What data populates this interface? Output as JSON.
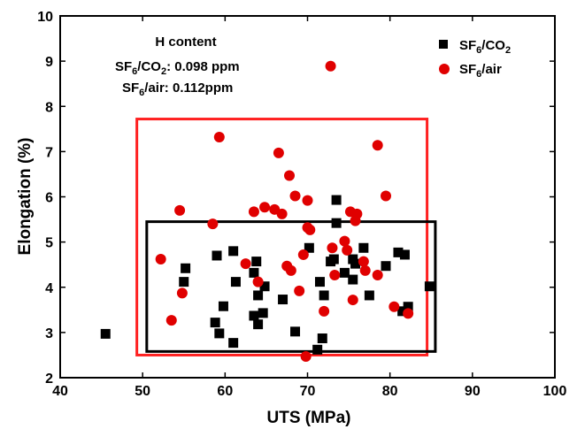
{
  "chart_data": {
    "type": "scatter",
    "xlabel": "UTS (MPa)",
    "ylabel": "Elongation (%)",
    "xlim": [
      40,
      100
    ],
    "ylim": [
      2,
      10
    ],
    "xticks": [
      40,
      50,
      60,
      70,
      80,
      90,
      100
    ],
    "yticks": [
      2,
      3,
      4,
      5,
      6,
      7,
      8,
      9,
      10
    ],
    "grid": false,
    "legend_position": "top-right",
    "annotation": {
      "title": "H content",
      "line1_prefix": "SF",
      "line1_sub1": "6",
      "line1_mid": "/CO",
      "line1_sub2": "2",
      "line1_suffix": ": 0.098 ppm",
      "line2_prefix": "SF",
      "line2_sub": "6",
      "line2_suffix": "/air: 0.112ppm"
    },
    "legend": [
      {
        "prefix": "SF",
        "sub1": "6",
        "mid": "/CO",
        "sub2": "2",
        "suffix": ""
      },
      {
        "prefix": "SF",
        "sub1": "6",
        "mid": "/air",
        "sub2": "",
        "suffix": ""
      }
    ],
    "series": [
      {
        "name": "SF6/CO2",
        "marker": "square",
        "color": "#000000",
        "points": [
          [
            45.5,
            2.97
          ],
          [
            55.2,
            4.42
          ],
          [
            55.0,
            4.12
          ],
          [
            58.8,
            3.22
          ],
          [
            59.0,
            4.7
          ],
          [
            59.3,
            2.98
          ],
          [
            59.8,
            3.58
          ],
          [
            61.0,
            4.8
          ],
          [
            61.3,
            4.12
          ],
          [
            61.0,
            2.77
          ],
          [
            63.5,
            4.32
          ],
          [
            63.5,
            3.37
          ],
          [
            63.8,
            4.57
          ],
          [
            64.0,
            3.82
          ],
          [
            64.0,
            3.18
          ],
          [
            64.6,
            3.43
          ],
          [
            64.8,
            4.02
          ],
          [
            67.0,
            3.73
          ],
          [
            68.5,
            3.02
          ],
          [
            70.2,
            4.87
          ],
          [
            71.2,
            2.62
          ],
          [
            71.5,
            4.12
          ],
          [
            71.8,
            2.87
          ],
          [
            72.0,
            3.82
          ],
          [
            72.8,
            4.57
          ],
          [
            73.2,
            4.62
          ],
          [
            73.5,
            5.93
          ],
          [
            73.5,
            5.42
          ],
          [
            74.5,
            4.32
          ],
          [
            75.5,
            4.62
          ],
          [
            75.5,
            4.17
          ],
          [
            75.8,
            4.52
          ],
          [
            76.8,
            4.87
          ],
          [
            77.5,
            3.82
          ],
          [
            79.5,
            4.47
          ],
          [
            81.0,
            4.77
          ],
          [
            81.5,
            3.47
          ],
          [
            81.8,
            4.72
          ],
          [
            82.2,
            3.57
          ],
          [
            84.8,
            4.02
          ]
        ]
      },
      {
        "name": "SF6/air",
        "marker": "circle",
        "color": "#e00000",
        "points": [
          [
            52.2,
            4.62
          ],
          [
            53.5,
            3.27
          ],
          [
            54.5,
            5.7
          ],
          [
            54.8,
            3.87
          ],
          [
            58.5,
            5.4
          ],
          [
            59.3,
            7.32
          ],
          [
            62.5,
            4.52
          ],
          [
            63.5,
            5.67
          ],
          [
            64.0,
            4.12
          ],
          [
            64.8,
            5.77
          ],
          [
            66.0,
            5.72
          ],
          [
            66.5,
            6.97
          ],
          [
            66.9,
            5.62
          ],
          [
            67.5,
            4.47
          ],
          [
            67.8,
            6.47
          ],
          [
            68.0,
            4.37
          ],
          [
            68.5,
            6.02
          ],
          [
            69.0,
            3.92
          ],
          [
            69.5,
            4.72
          ],
          [
            69.8,
            2.47
          ],
          [
            70.0,
            5.32
          ],
          [
            70.0,
            5.92
          ],
          [
            70.3,
            5.27
          ],
          [
            72.0,
            3.47
          ],
          [
            72.8,
            8.89
          ],
          [
            73.0,
            4.87
          ],
          [
            73.3,
            4.27
          ],
          [
            74.5,
            5.02
          ],
          [
            74.8,
            4.82
          ],
          [
            75.2,
            5.67
          ],
          [
            75.5,
            3.72
          ],
          [
            75.8,
            5.47
          ],
          [
            76.0,
            5.62
          ],
          [
            76.8,
            4.57
          ],
          [
            77.0,
            4.37
          ],
          [
            78.5,
            4.27
          ],
          [
            78.5,
            7.14
          ],
          [
            79.5,
            6.02
          ],
          [
            80.5,
            3.57
          ],
          [
            82.2,
            3.42
          ]
        ]
      }
    ],
    "rectangles": [
      {
        "color": "#ff2020",
        "x0": 49.3,
        "x1": 84.5,
        "y0": 2.5,
        "y1": 7.72
      },
      {
        "color": "#000000",
        "x0": 50.5,
        "x1": 85.5,
        "y0": 2.58,
        "y1": 5.45
      }
    ]
  }
}
